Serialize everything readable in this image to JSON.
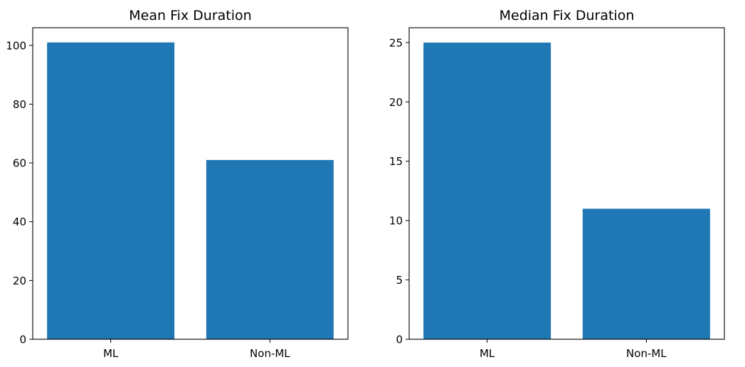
{
  "chart_data": [
    {
      "type": "bar",
      "title": "Mean Fix Duration",
      "categories": [
        "ML",
        "Non-ML"
      ],
      "values": [
        101,
        61
      ],
      "xlabel": "",
      "ylabel": "",
      "ylim": [
        0,
        106
      ],
      "yticks": [
        0,
        20,
        40,
        60,
        80,
        100
      ],
      "grid": false,
      "color": "#1f77b4"
    },
    {
      "type": "bar",
      "title": "Median Fix Duration",
      "categories": [
        "ML",
        "Non-ML"
      ],
      "values": [
        25,
        11
      ],
      "xlabel": "",
      "ylabel": "",
      "ylim": [
        0,
        26.25
      ],
      "yticks": [
        0,
        5,
        10,
        15,
        20,
        25
      ],
      "grid": false,
      "color": "#1f77b4"
    }
  ]
}
